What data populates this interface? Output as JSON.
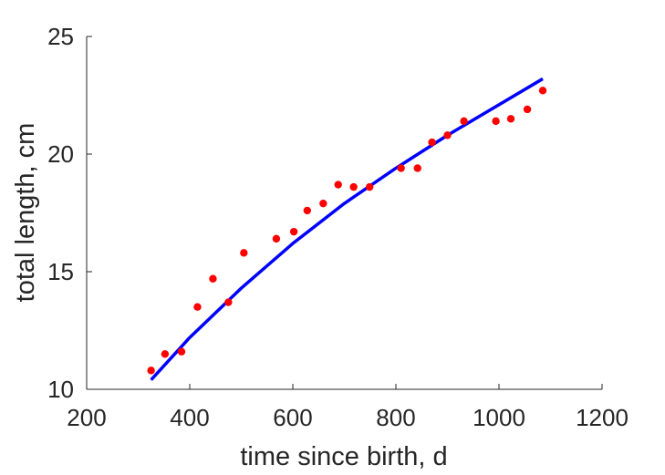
{
  "chart_data": {
    "type": "scatter",
    "xlabel": "time since birth, d",
    "ylabel": "total length, cm",
    "xlim": [
      200,
      1200
    ],
    "ylim": [
      10,
      25
    ],
    "xticks": [
      "200",
      "400",
      "600",
      "800",
      "1000",
      "1200"
    ],
    "yticks": [
      "10",
      "15",
      "20",
      "25"
    ],
    "grid": false,
    "box": false,
    "series": [
      {
        "kind": "points",
        "color": "#ff0000",
        "x": [
          325,
          352,
          384,
          415,
          445,
          475,
          505,
          568,
          602,
          628,
          659,
          688,
          718,
          749,
          810,
          842,
          870,
          900,
          932,
          994,
          1023,
          1055,
          1085
        ],
        "y": [
          10.8,
          11.5,
          11.6,
          13.5,
          14.7,
          13.7,
          15.8,
          16.4,
          16.7,
          17.6,
          17.9,
          18.7,
          18.6,
          18.6,
          19.4,
          19.4,
          20.5,
          20.8,
          21.4,
          21.4,
          21.5,
          21.9,
          22.7
        ]
      },
      {
        "kind": "line",
        "color": "#0000ff",
        "x": [
          325,
          400,
          500,
          600,
          700,
          800,
          900,
          1000,
          1085
        ],
        "y": [
          10.4,
          12.2,
          14.3,
          16.2,
          17.9,
          19.4,
          20.8,
          22.1,
          23.2
        ]
      }
    ]
  }
}
